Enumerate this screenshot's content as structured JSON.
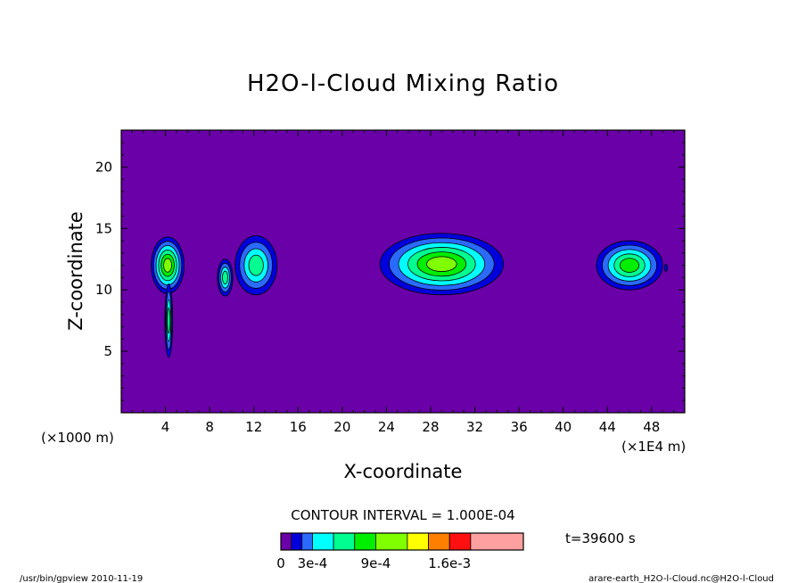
{
  "chart_data": {
    "type": "contour",
    "title": "H2O-l-Cloud Mixing Ratio",
    "xlabel": "X-coordinate",
    "ylabel": "Z-coordinate",
    "x_unit_left": "(×1000 m)",
    "x_unit_right": "(×1E4 m)",
    "xlim": [
      0,
      51
    ],
    "ylim": [
      0,
      23
    ],
    "x_ticks": [
      4,
      8,
      12,
      16,
      20,
      24,
      28,
      32,
      36,
      40,
      44,
      48
    ],
    "x_tick_labels": [
      "4",
      "8",
      "12",
      "16",
      "20",
      "24",
      "28",
      "32",
      "36",
      "40",
      "44",
      "48"
    ],
    "y_ticks": [
      5,
      10,
      15,
      20
    ],
    "y_tick_labels": [
      "5",
      "10",
      "15",
      "20"
    ],
    "contour_interval_text": "CONTOUR INTERVAL = 1.000E-04",
    "time_label": "t=39600 s",
    "background_color": "#6a00a8",
    "levels": [
      0,
      0.0001,
      0.0002,
      0.0003,
      0.0005,
      0.0007,
      0.0009,
      0.0012,
      0.0014,
      0.0016,
      0.0018,
      0.0025
    ],
    "colors": [
      "#6a00a8",
      "#0000dd",
      "#2a6aff",
      "#00ffff",
      "#00ff90",
      "#00ee00",
      "#7fff00",
      "#ffff00",
      "#ff8000",
      "#ff1010",
      "#ffa0a0"
    ],
    "colorbar_widths": [
      1,
      1,
      1,
      2,
      2,
      2,
      3,
      2,
      2,
      2,
      5
    ],
    "colorbar_labels": [
      "0",
      "3e-4",
      "9e-4",
      "1.6e-3"
    ],
    "colorbar_label_levels": [
      0,
      0.0003,
      0.0009,
      0.0016
    ],
    "clouds": [
      {
        "x": 4.2,
        "z": 12.0,
        "half_width": 1.5,
        "half_height": 2.3,
        "max_level": 6
      },
      {
        "x": 4.3,
        "z": 7.5,
        "half_width": 0.35,
        "half_height": 3.0,
        "max_level": 4
      },
      {
        "x": 9.4,
        "z": 11.0,
        "half_width": 0.7,
        "half_height": 1.5,
        "max_level": 4
      },
      {
        "x": 12.2,
        "z": 12.0,
        "half_width": 1.9,
        "half_height": 2.4,
        "max_level": 4
      },
      {
        "x": 29.0,
        "z": 12.1,
        "half_width": 5.6,
        "half_height": 2.5,
        "max_level": 6
      },
      {
        "x": 46.0,
        "z": 12.0,
        "half_width": 3.0,
        "half_height": 2.0,
        "max_level": 5
      },
      {
        "x": 49.3,
        "z": 11.8,
        "half_width": 0.15,
        "half_height": 0.3,
        "max_level": 1
      }
    ]
  },
  "footer": {
    "left": "/usr/bin/gpview   2010-11-19",
    "right": "arare-earth_H2O-l-Cloud.nc@H2O-l-Cloud"
  }
}
